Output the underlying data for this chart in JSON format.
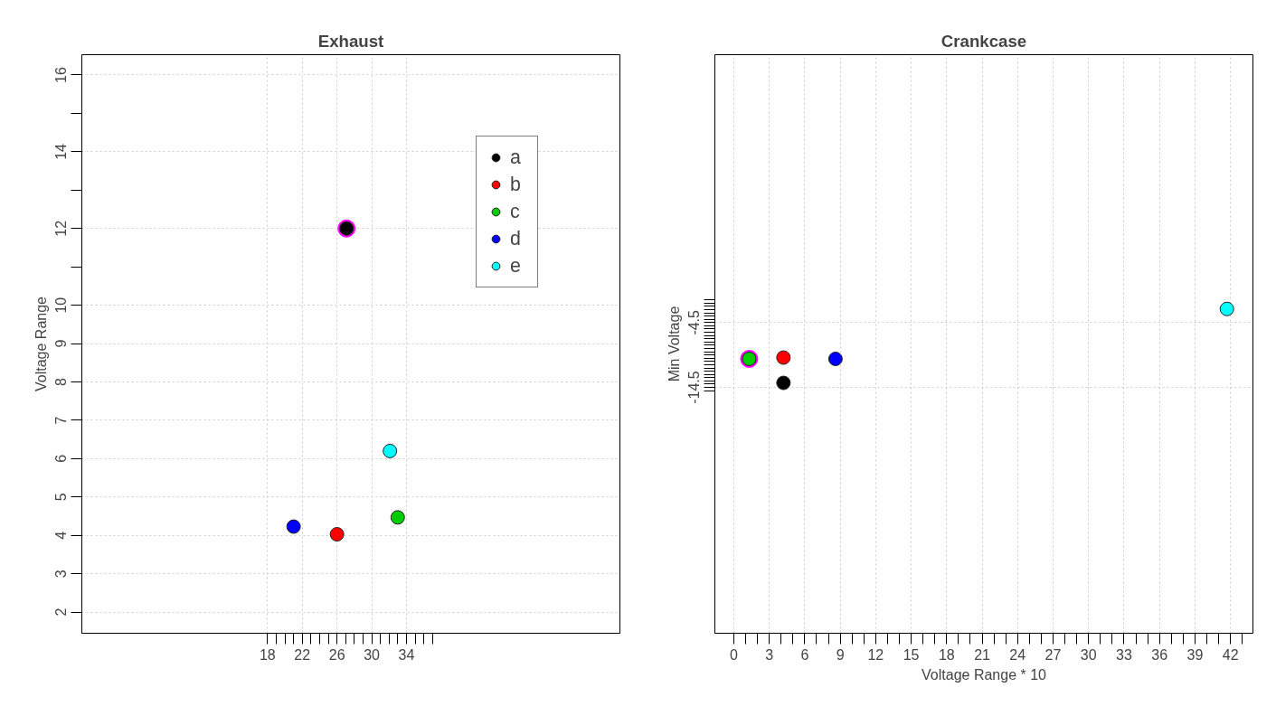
{
  "chart_data": [
    {
      "type": "scatter",
      "title": "Exhaust",
      "ylabel": "Voltage Range",
      "marker": "circle",
      "grid": true,
      "legend": "top right",
      "xlim": [
        -3.4,
        58.6
      ],
      "ylim": [
        1.45,
        16.53
      ],
      "xticks": [
        18,
        {
          "value": 19,
          "label": null
        },
        {
          "value": 20,
          "label": null
        },
        {
          "value": 21,
          "label": null
        },
        22,
        {
          "value": 23,
          "label": null
        },
        {
          "value": 24,
          "label": null
        },
        {
          "value": 25,
          "label": null
        },
        26,
        {
          "value": 27,
          "label": null
        },
        {
          "value": 28,
          "label": null
        },
        {
          "value": 29,
          "label": null
        },
        30,
        {
          "value": 31,
          "label": null
        },
        {
          "value": 32,
          "label": null
        },
        {
          "value": 33,
          "label": null
        },
        34,
        {
          "value": 35,
          "label": null
        },
        {
          "value": 36,
          "label": null
        },
        {
          "value": 37,
          "label": null
        }
      ],
      "yticks": [
        2,
        3,
        4,
        5,
        6,
        7,
        8,
        9,
        10,
        {
          "value": 11,
          "label": null
        },
        12,
        {
          "value": 13,
          "label": null
        },
        14,
        {
          "value": 15,
          "label": null
        },
        16
      ],
      "series": [
        {
          "color": "#ff00ff",
          "x": [
            27.1
          ],
          "values": [
            12.0
          ]
        },
        {
          "name": "a",
          "color": "#000000",
          "x": [
            27.1
          ],
          "values": [
            12.0
          ]
        },
        {
          "name": "b",
          "color": "#ff0000",
          "x": [
            26.0
          ],
          "values": [
            4.03
          ]
        },
        {
          "name": "c",
          "color": "#00cd00",
          "x": [
            33.0
          ],
          "values": [
            4.47
          ]
        },
        {
          "name": "d",
          "color": "#0000ff",
          "x": [
            21.0
          ],
          "values": [
            4.23
          ]
        },
        {
          "name": "e",
          "color": "#00ffff",
          "x": [
            32.1
          ],
          "values": [
            6.2
          ]
        }
      ]
    },
    {
      "type": "scatter",
      "title": "Crankcase",
      "xlabel": "Voltage Range * 10",
      "ylabel": "Min Voltage",
      "marker": "circle",
      "grid": true,
      "xlim": [
        -1.6,
        43.9
      ],
      "ylim": [
        -52.4,
        36.8
      ],
      "xticks": [
        0,
        {
          "value": 1,
          "label": null
        },
        {
          "value": 2,
          "label": null
        },
        3,
        {
          "value": 4,
          "label": null
        },
        {
          "value": 5,
          "label": null
        },
        6,
        {
          "value": 7,
          "label": null
        },
        {
          "value": 8,
          "label": null
        },
        9,
        {
          "value": 10,
          "label": null
        },
        {
          "value": 11,
          "label": null
        },
        12,
        {
          "value": 13,
          "label": null
        },
        {
          "value": 14,
          "label": null
        },
        15,
        {
          "value": 16,
          "label": null
        },
        {
          "value": 17,
          "label": null
        },
        18,
        {
          "value": 19,
          "label": null
        },
        {
          "value": 20,
          "label": null
        },
        21,
        {
          "value": 22,
          "label": null
        },
        {
          "value": 23,
          "label": null
        },
        24,
        {
          "value": 25,
          "label": null
        },
        {
          "value": 26,
          "label": null
        },
        27,
        {
          "value": 28,
          "label": null
        },
        {
          "value": 29,
          "label": null
        },
        30,
        {
          "value": 31,
          "label": null
        },
        {
          "value": 32,
          "label": null
        },
        33,
        {
          "value": 34,
          "label": null
        },
        {
          "value": 35,
          "label": null
        },
        36,
        {
          "value": 37,
          "label": null
        },
        {
          "value": 38,
          "label": null
        },
        39,
        {
          "value": 40,
          "label": null
        },
        {
          "value": 41,
          "label": null
        },
        42,
        {
          "value": 43,
          "label": null
        }
      ],
      "yticks": [
        {
          "value": -15,
          "label": null
        },
        -14.5,
        {
          "value": -14,
          "label": null
        },
        {
          "value": -13.5,
          "label": null
        },
        {
          "value": -13,
          "label": null
        },
        {
          "value": -12.5,
          "label": null
        },
        {
          "value": -12,
          "label": null
        },
        {
          "value": -11.5,
          "label": null
        },
        {
          "value": -11,
          "label": null
        },
        {
          "value": -10.5,
          "label": null
        },
        {
          "value": -10,
          "label": null
        },
        {
          "value": -9.5,
          "label": null
        },
        {
          "value": -9,
          "label": null
        },
        {
          "value": -8.5,
          "label": null
        },
        {
          "value": -8,
          "label": null
        },
        {
          "value": -7.5,
          "label": null
        },
        {
          "value": -7,
          "label": null
        },
        {
          "value": -6.5,
          "label": null
        },
        {
          "value": -6,
          "label": null
        },
        {
          "value": -5.5,
          "label": null
        },
        {
          "value": -5,
          "label": null
        },
        -4.5,
        {
          "value": -4,
          "label": null
        },
        {
          "value": -3.5,
          "label": null
        },
        {
          "value": -3,
          "label": null
        },
        {
          "value": -2.5,
          "label": null
        },
        {
          "value": -2,
          "label": null
        },
        {
          "value": -1.5,
          "label": null
        },
        {
          "value": -1,
          "label": null
        }
      ],
      "series": [
        {
          "color": "#ff00ff",
          "x": [
            1.3
          ],
          "values": [
            -10.1
          ]
        },
        {
          "color": "#000000",
          "x": [
            4.2
          ],
          "values": [
            -13.8
          ]
        },
        {
          "color": "#ff0000",
          "x": [
            4.2
          ],
          "values": [
            -9.9
          ]
        },
        {
          "color": "#00cd00",
          "x": [
            1.3
          ],
          "values": [
            -10.1
          ]
        },
        {
          "color": "#0000ff",
          "x": [
            8.6
          ],
          "values": [
            -10.1
          ]
        },
        {
          "color": "#00ffff",
          "x": [
            41.7
          ],
          "values": [
            -2.4
          ]
        }
      ]
    }
  ]
}
